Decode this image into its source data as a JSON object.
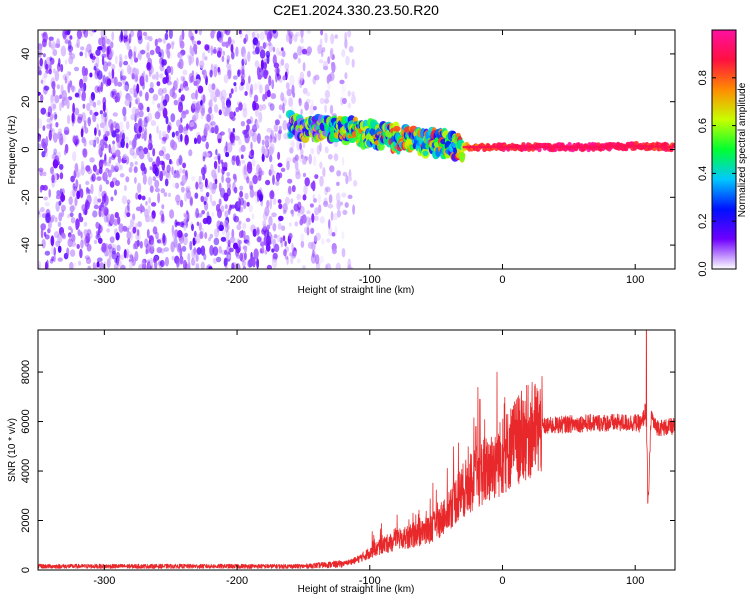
{
  "figure": {
    "title": "C2E1.2024.330.23.50.R20"
  },
  "chart_data": [
    {
      "type": "heatmap",
      "xlabel": "Height of straight line (km)",
      "ylabel": "Frequency (Hz)",
      "xlim": [
        -350,
        130
      ],
      "ylim": [
        -50,
        50
      ],
      "xticks": [
        -300,
        -200,
        -100,
        0,
        100
      ],
      "yticks": [
        -40,
        -20,
        0,
        20,
        40
      ],
      "colorbar": {
        "label": "Normalized spectral amplitude",
        "range": [
          0,
          1
        ],
        "ticks": [
          "0.0",
          "0.2",
          "0.4",
          "0.6",
          "0.8"
        ],
        "tick_values": [
          0,
          0.2,
          0.4,
          0.6,
          0.8
        ],
        "colormap": [
          "#ffffff",
          "#6e00ff",
          "#0010ff",
          "#00c8ff",
          "#00ff30",
          "#c8ff00",
          "#ff8c00",
          "#ff1040",
          "#ff10a0"
        ]
      },
      "features": {
        "noise_region_x": [
          -350,
          -110
        ],
        "signal_band_x": [
          -160,
          130
        ],
        "signal_band_center_hz": [
          [
            -160,
            10
          ],
          [
            -120,
            8
          ],
          [
            -80,
            5
          ],
          [
            -40,
            2
          ],
          [
            -30,
            1
          ],
          [
            0,
            1
          ],
          [
            60,
            1
          ],
          [
            100,
            1.5
          ],
          [
            130,
            1
          ]
        ],
        "signal_band_amplitude": [
          [
            -160,
            0.3
          ],
          [
            -110,
            0.5
          ],
          [
            -70,
            0.55
          ],
          [
            -35,
            0.5
          ],
          [
            -25,
            0.8
          ],
          [
            0,
            0.9
          ],
          [
            60,
            0.95
          ],
          [
            130,
            0.85
          ]
        ]
      }
    },
    {
      "type": "line",
      "xlabel": "Height of straight line (km)",
      "ylabel": "SNR (10 * v/v)",
      "xlim": [
        -350,
        130
      ],
      "ylim": [
        0,
        9700
      ],
      "xticks": [
        -300,
        -200,
        -100,
        0,
        100
      ],
      "yticks": [
        0,
        2000,
        4000,
        6000,
        8000
      ],
      "series": [
        {
          "color": "#e8282a",
          "envelope_x": [
            -350,
            -150,
            -120,
            -110,
            -100,
            -90,
            -80,
            -60,
            -50,
            -40,
            -30,
            -20,
            -15,
            -10,
            0,
            10,
            20,
            30,
            50,
            70,
            90,
            100,
            105,
            108,
            110,
            112,
            115,
            120,
            130
          ],
          "envelope_y": [
            150,
            150,
            250,
            400,
            700,
            1000,
            1200,
            1500,
            1800,
            2500,
            3200,
            3700,
            4000,
            4100,
            4600,
            5200,
            5600,
            5800,
            5900,
            5950,
            5950,
            5950,
            5900,
            6500,
            2800,
            6300,
            5800,
            5750,
            5800
          ],
          "noise_amplitude": 0.35,
          "spikes": [
            [
              -17,
              6900
            ],
            [
              -20,
              5800
            ],
            [
              108.5,
              9700
            ],
            [
              109.5,
              2700
            ]
          ]
        }
      ]
    }
  ]
}
